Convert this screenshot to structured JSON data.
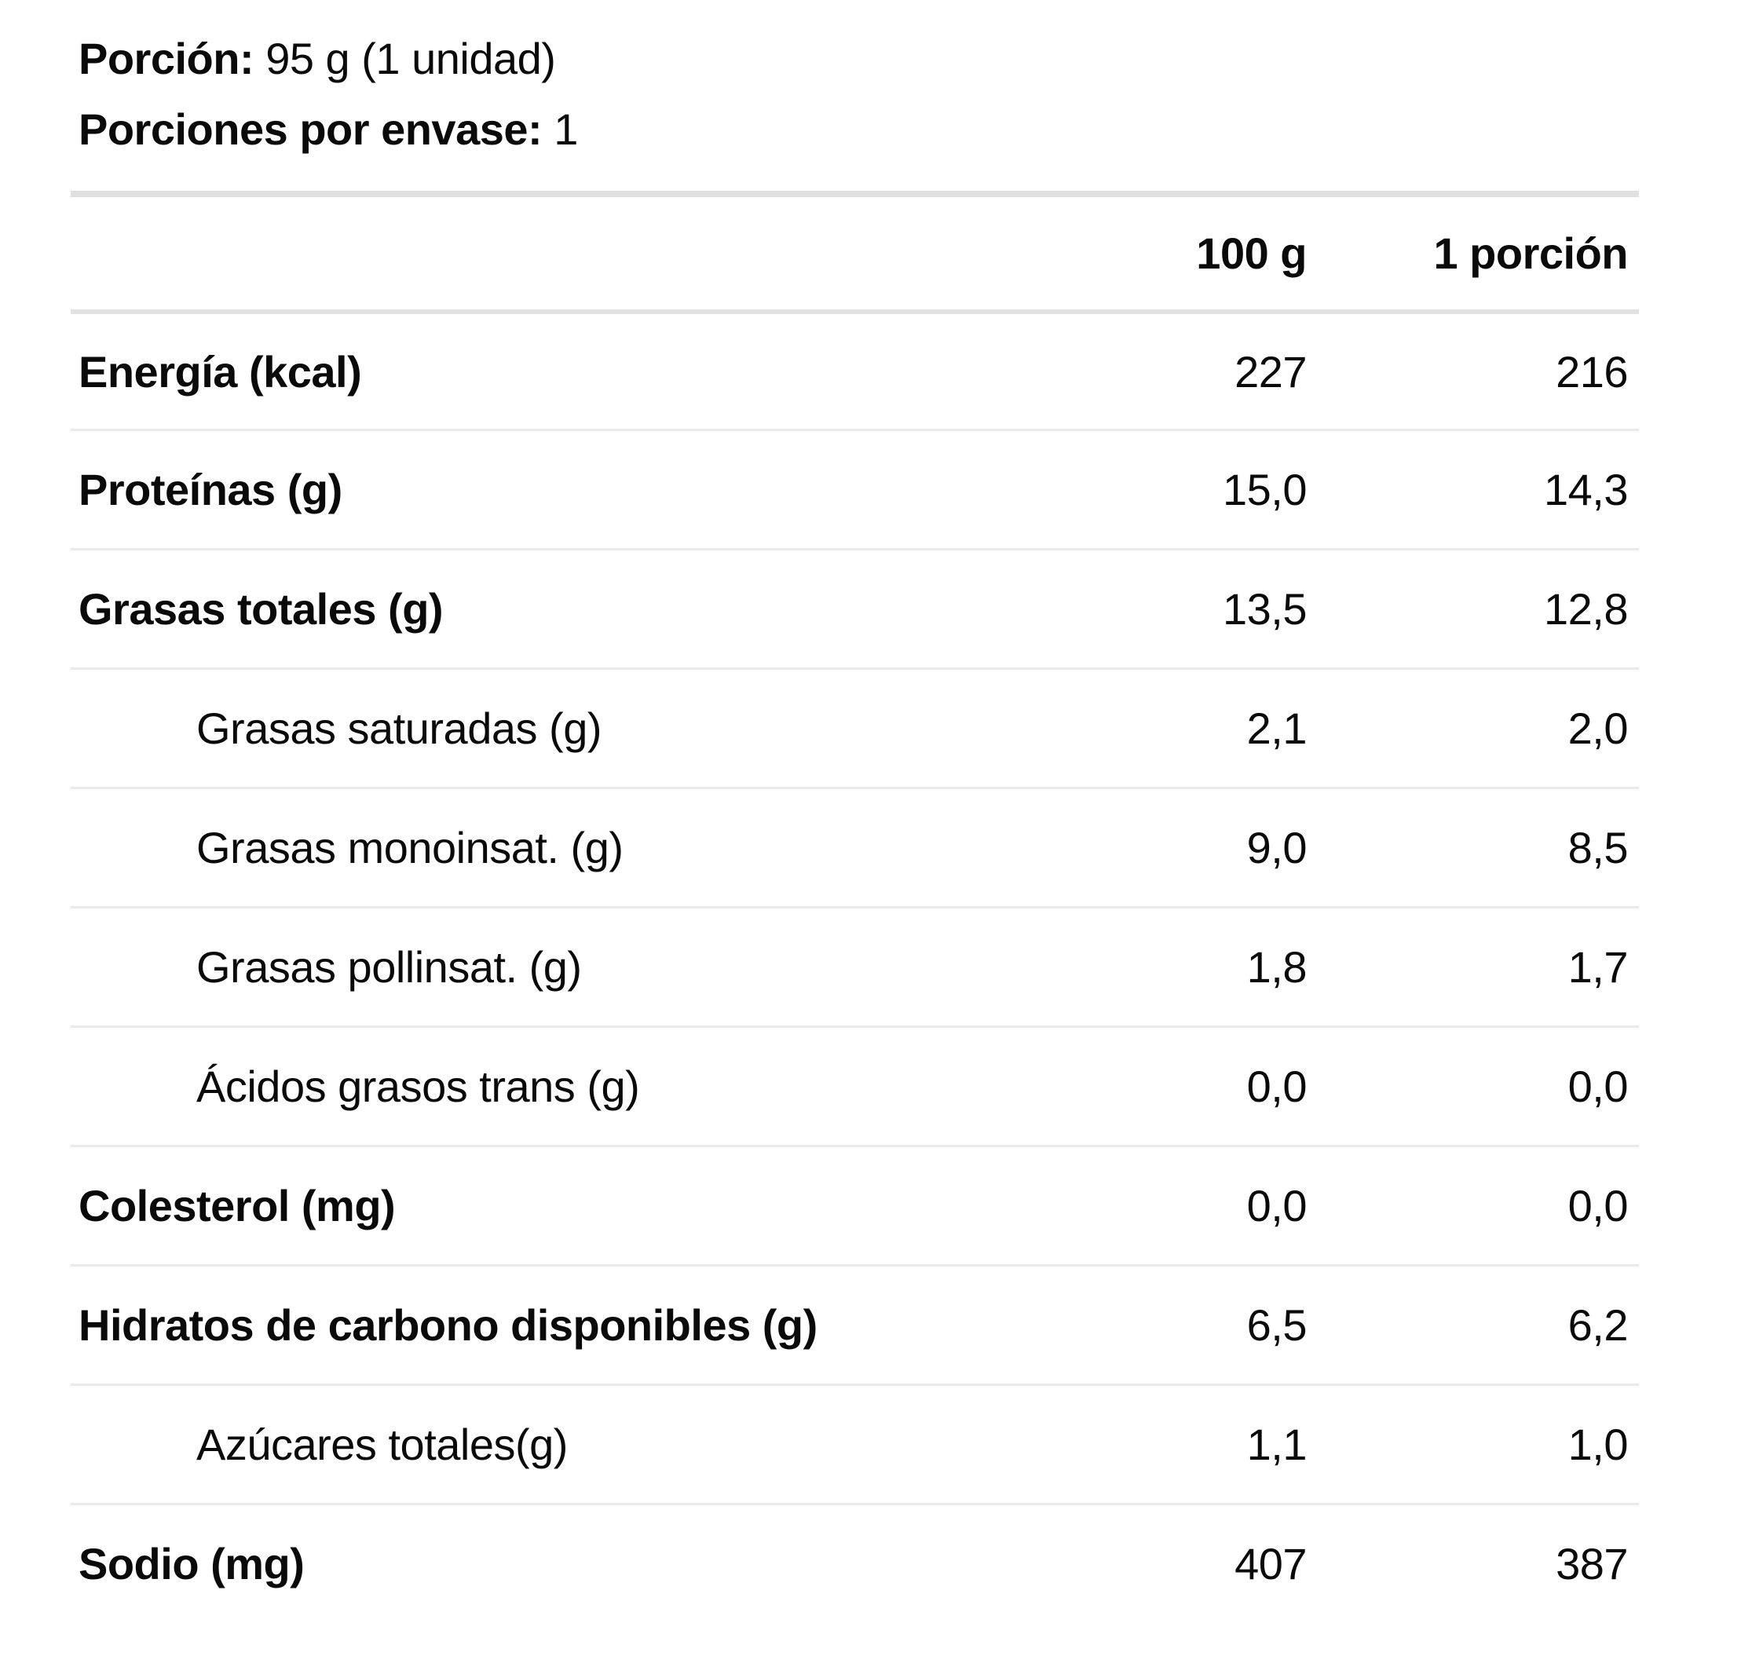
{
  "meta": {
    "portion_label": "Porción:",
    "portion_value": "95 g (1 unidad)",
    "servings_label": "Porciones por envase:",
    "servings_value": "1"
  },
  "table": {
    "columns": {
      "per100": "100 g",
      "perPortion": "1 porción"
    },
    "rows": [
      {
        "label": "Energía (kcal)",
        "per100": "227",
        "perPortion": "216"
      },
      {
        "label": "Proteínas (g)",
        "per100": "15,0",
        "perPortion": "14,3"
      },
      {
        "label": "Grasas totales (g)",
        "per100": "13,5",
        "perPortion": "12,8"
      },
      {
        "label": "Grasas saturadas (g)",
        "per100": "2,1",
        "perPortion": "2,0"
      },
      {
        "label": "Grasas monoinsat. (g)",
        "per100": "9,0",
        "perPortion": "8,5"
      },
      {
        "label": "Grasas pollinsat. (g)",
        "per100": "1,8",
        "perPortion": "1,7"
      },
      {
        "label": "Ácidos grasos trans (g)",
        "per100": "0,0",
        "perPortion": "0,0"
      },
      {
        "label": "Colesterol (mg)",
        "per100": "0,0",
        "perPortion": "0,0"
      },
      {
        "label": "Hidratos de carbono disponibles (g)",
        "per100": "6,5",
        "perPortion": "6,2"
      },
      {
        "label": "Azúcares totales(g)",
        "per100": "1,1",
        "perPortion": "1,0"
      },
      {
        "label": "Sodio (mg)",
        "per100": "407",
        "perPortion": "387"
      }
    ]
  },
  "colors": {
    "text": "#0a0a0a",
    "divider_strong": "#e0e0e0",
    "divider_light": "#eaeaea",
    "background": "#ffffff"
  }
}
